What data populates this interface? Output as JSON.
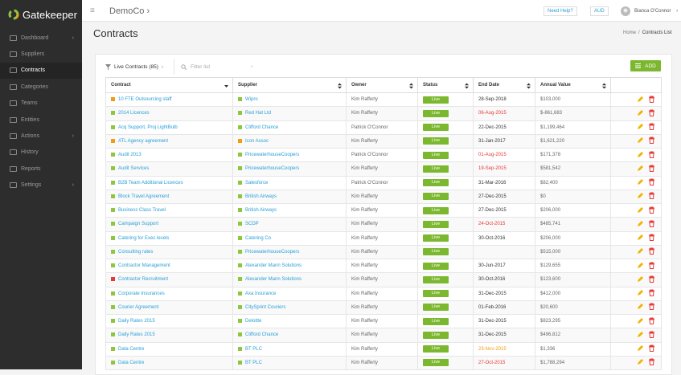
{
  "sidebar": {
    "logo": "Gatekeeper",
    "nav": [
      {
        "label": "Dashboard",
        "expandable": true
      },
      {
        "label": "Suppliers"
      },
      {
        "label": "Contracts",
        "active": true
      },
      {
        "label": "Categories"
      },
      {
        "label": "Teams"
      },
      {
        "label": "Entities"
      },
      {
        "label": "Actions",
        "expandable": true
      },
      {
        "label": "History"
      },
      {
        "label": "Reports"
      },
      {
        "label": "Settings",
        "expandable": true
      }
    ]
  },
  "topbar": {
    "company": "DemoCo",
    "help": "Need Help?",
    "currency": "AUD",
    "user": "Bianca O'Connor"
  },
  "header": {
    "title": "Contracts",
    "breadcrumb": [
      "Home",
      "/",
      "Contracts List"
    ]
  },
  "toolbar": {
    "filter_menu": "Live Contracts (85)",
    "search_placeholder": "Filter list",
    "add_button": "ADD"
  },
  "table": {
    "columns": [
      "Contract",
      "Supplier",
      "Owner",
      "Status",
      "End Date",
      "Annual Value"
    ],
    "rows": [
      {
        "contract": "10 FTE Outsourcing staff",
        "contract_flag": "#f39c12",
        "supplier": "Wipro",
        "supplier_flag": "#8dc63f",
        "owner": "Kim Rafferty",
        "status": "Live",
        "end_date": "28-Sep-2018",
        "end_date_color": "#333333",
        "annual_value": "$103,000"
      },
      {
        "contract": "2014 Licences",
        "contract_flag": "#8dc63f",
        "supplier": "Red Hat Ltd",
        "supplier_flag": "#8dc63f",
        "owner": "Kim Rafferty",
        "status": "Live",
        "end_date": "06-Aug-2015",
        "end_date_color": "#e53935",
        "annual_value": "$-861,683"
      },
      {
        "contract": "Acq Support, Proj LightBulb",
        "contract_flag": "#8dc63f",
        "supplier": "Clifford Chance",
        "supplier_flag": "#8dc63f",
        "owner": "Patrick O'Connor",
        "status": "Live",
        "end_date": "22-Dec-2015",
        "end_date_color": "#333333",
        "annual_value": "$1,199,464"
      },
      {
        "contract": "ATL Agency agreement",
        "contract_flag": "#f39c12",
        "supplier": "Icon Assoc",
        "supplier_flag": "#f39c12",
        "owner": "Kim Rafferty",
        "status": "Live",
        "end_date": "31-Jan-2017",
        "end_date_color": "#333333",
        "annual_value": "$1,621,220"
      },
      {
        "contract": "Audit 2013",
        "contract_flag": "#8dc63f",
        "supplier": "PricewaterhouseCoopers",
        "supplier_flag": "#8dc63f",
        "owner": "Patrick O'Connor",
        "status": "Live",
        "end_date": "01-Aug-2015",
        "end_date_color": "#e53935",
        "annual_value": "$171,378"
      },
      {
        "contract": "Audit Services",
        "contract_flag": "#8dc63f",
        "supplier": "PricewaterhouseCoopers",
        "supplier_flag": "#8dc63f",
        "owner": "Kim Rafferty",
        "status": "Live",
        "end_date": "19-Sep-2015",
        "end_date_color": "#e53935",
        "annual_value": "$581,542"
      },
      {
        "contract": "B2B Team Additional Licences",
        "contract_flag": "#8dc63f",
        "supplier": "Salesforce",
        "supplier_flag": "#8dc63f",
        "owner": "Patrick O'Connor",
        "status": "Live",
        "end_date": "31-Mar-2016",
        "end_date_color": "#333333",
        "annual_value": "$82,400"
      },
      {
        "contract": "Block Travel Agreement",
        "contract_flag": "#8dc63f",
        "supplier": "British Airways",
        "supplier_flag": "#8dc63f",
        "owner": "Kim Rafferty",
        "status": "Live",
        "end_date": "27-Dec-2015",
        "end_date_color": "#333333",
        "annual_value": "$0"
      },
      {
        "contract": "Business Class Travel",
        "contract_flag": "#8dc63f",
        "supplier": "British Airways",
        "supplier_flag": "#8dc63f",
        "owner": "Kim Rafferty",
        "status": "Live",
        "end_date": "27-Dec-2015",
        "end_date_color": "#333333",
        "annual_value": "$206,000"
      },
      {
        "contract": "Campaign Support",
        "contract_flag": "#8dc63f",
        "supplier": "SCDP",
        "supplier_flag": "#8dc63f",
        "owner": "Kim Rafferty",
        "status": "Live",
        "end_date": "24-Oct-2015",
        "end_date_color": "#e53935",
        "annual_value": "$485,741"
      },
      {
        "contract": "Catering for Exec levels",
        "contract_flag": "#8dc63f",
        "supplier": "Catering Co",
        "supplier_flag": "#8dc63f",
        "owner": "Kim Rafferty",
        "status": "Live",
        "end_date": "30-Oct-2016",
        "end_date_color": "#333333",
        "annual_value": "$206,000"
      },
      {
        "contract": "Consulting rates",
        "contract_flag": "#8dc63f",
        "supplier": "PricewaterhouseCoopers",
        "supplier_flag": "#8dc63f",
        "owner": "Kim Rafferty",
        "status": "Live",
        "end_date": null,
        "end_date_color": "#333333",
        "annual_value": "$515,000"
      },
      {
        "contract": "Contractor Management",
        "contract_flag": "#8dc63f",
        "supplier": "Alexander Mann Solutions",
        "supplier_flag": "#8dc63f",
        "owner": "Kim Rafferty",
        "status": "Live",
        "end_date": "30-Jun-2017",
        "end_date_color": "#333333",
        "annual_value": "$129,655"
      },
      {
        "contract": "Contractor Recruitment",
        "contract_flag": "#e53935",
        "supplier": "Alexander Mann Solutions",
        "supplier_flag": "#8dc63f",
        "owner": "Kim Rafferty",
        "status": "Live",
        "end_date": "30-Oct-2016",
        "end_date_color": "#333333",
        "annual_value": "$123,600"
      },
      {
        "contract": "Corporate Insurances",
        "contract_flag": "#8dc63f",
        "supplier": "Axa Insurance",
        "supplier_flag": "#8dc63f",
        "owner": "Kim Rafferty",
        "status": "Live",
        "end_date": "31-Dec-2015",
        "end_date_color": "#333333",
        "annual_value": "$412,000"
      },
      {
        "contract": "Courier Agreement",
        "contract_flag": "#8dc63f",
        "supplier": "CitySprint Couriers",
        "supplier_flag": "#8dc63f",
        "owner": "Kim Rafferty",
        "status": "Live",
        "end_date": "01-Feb-2016",
        "end_date_color": "#333333",
        "annual_value": "$20,600"
      },
      {
        "contract": "Daily Rates 2015",
        "contract_flag": "#8dc63f",
        "supplier": "Deloitte",
        "supplier_flag": "#8dc63f",
        "owner": "Kim Rafferty",
        "status": "Live",
        "end_date": "31-Dec-2015",
        "end_date_color": "#333333",
        "annual_value": "$823,295"
      },
      {
        "contract": "Daily Rates 2015",
        "contract_flag": "#8dc63f",
        "supplier": "Clifford Chance",
        "supplier_flag": "#8dc63f",
        "owner": "Kim Rafferty",
        "status": "Live",
        "end_date": "31-Dec-2015",
        "end_date_color": "#333333",
        "annual_value": "$496,812"
      },
      {
        "contract": "Data Centre",
        "contract_flag": "#8dc63f",
        "supplier": "BT PLC",
        "supplier_flag": "#8dc63f",
        "owner": "Kim Rafferty",
        "status": "Live",
        "end_date": "23-Nov-2015",
        "end_date_color": "#f39c12",
        "annual_value": "$1,336"
      },
      {
        "contract": "Data Centre",
        "contract_flag": "#8dc63f",
        "supplier": "BT PLC",
        "supplier_flag": "#8dc63f",
        "owner": "Kim Rafferty",
        "status": "Live",
        "end_date": "27-Oct-2015",
        "end_date_color": "#e53935",
        "annual_value": "$1,788,294"
      }
    ]
  }
}
